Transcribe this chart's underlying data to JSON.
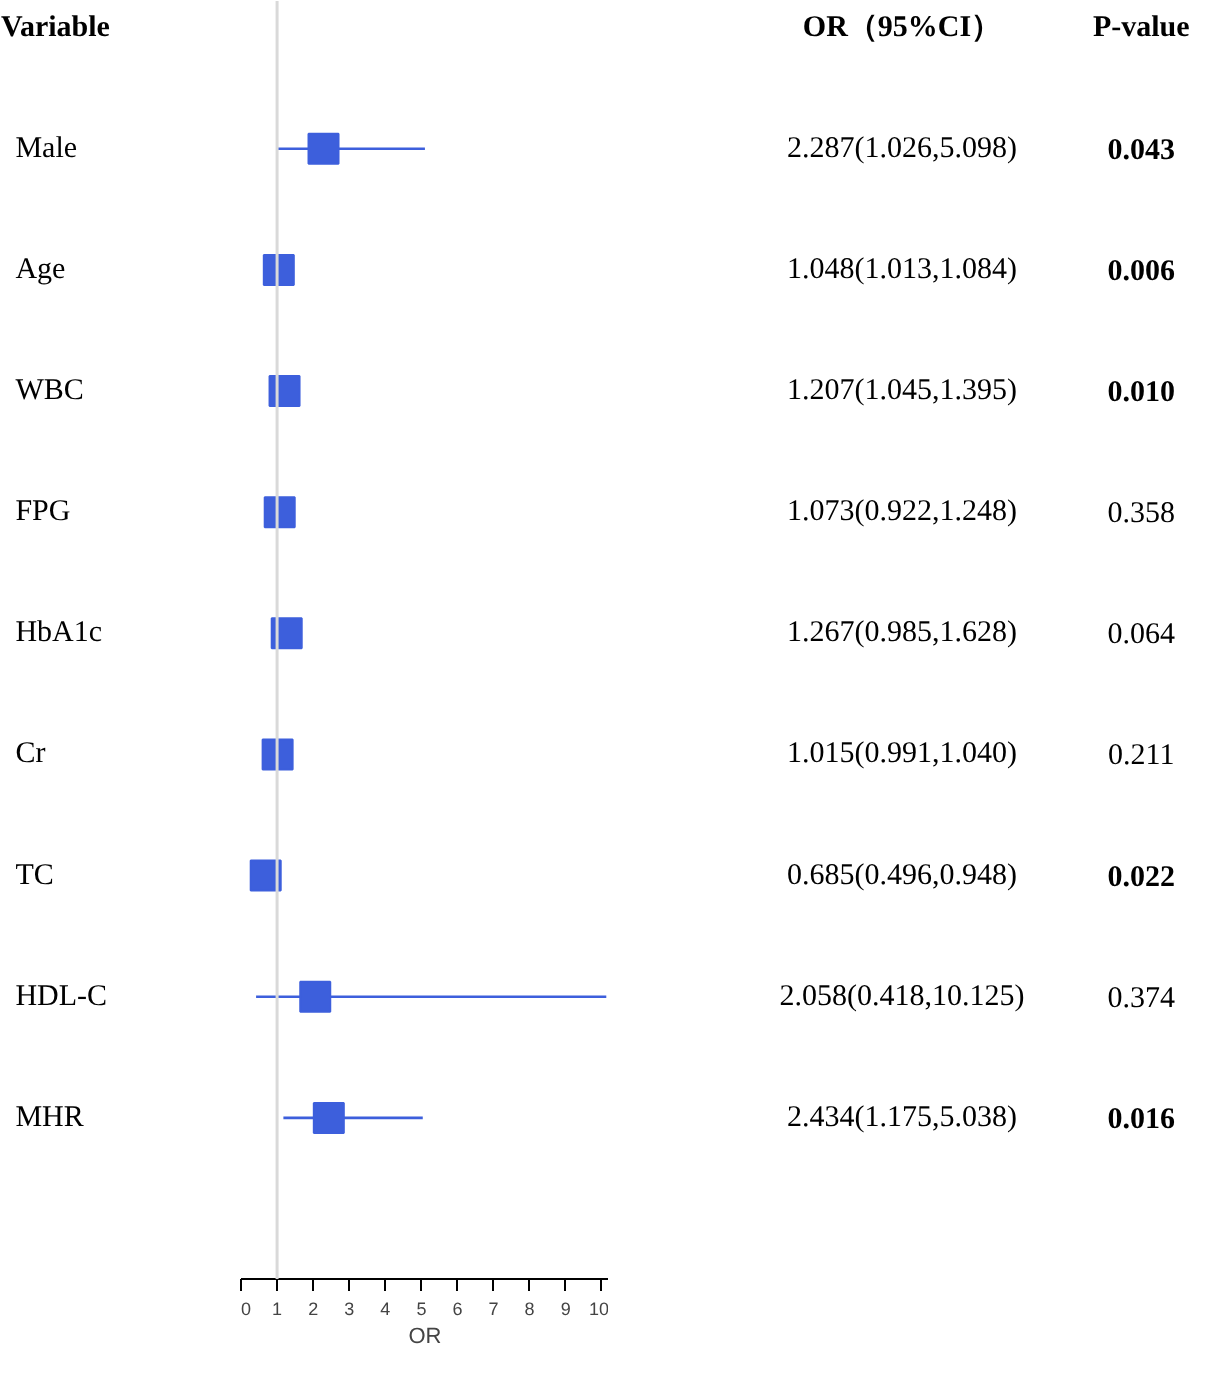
{
  "chart_data": {
    "type": "scatter",
    "orientation": "horizontal",
    "ylabel": "Variable",
    "xlabel": "OR",
    "categories": [
      "Male",
      "Age",
      "WBC",
      "FPG",
      "HbA1c",
      "Cr",
      "TC",
      "HDL-C",
      "MHR"
    ],
    "series": [
      {
        "color": "#3d5fdc",
        "values": [
          2.287,
          1.048,
          1.207,
          1.073,
          1.267,
          1.015,
          0.685,
          2.058,
          2.434
        ],
        "errors": [
          [
            1.026,
            5.098
          ],
          null,
          null,
          null,
          null,
          null,
          null,
          [
            0.418,
            10.125
          ],
          [
            1.175,
            5.038
          ]
        ],
        "value_labels": [
          "2.287(1.026,5.098)",
          "1.048(1.013,1.084)",
          "1.207(1.045,1.395)",
          "1.073(0.922,1.248)",
          "1.267(0.985,1.628)",
          "1.015(0.991,1.040)",
          "0.685(0.496,0.948)",
          "2.058(0.418,10.125)",
          "2.434(1.175,5.038)"
        ]
      }
    ],
    "annotations": [
      "OR（95%CI）",
      "P-value",
      "0.043",
      "0.006",
      "0.010",
      "0.358",
      "0.064",
      "0.211",
      "0.022",
      "0.374",
      "0.016"
    ],
    "xlim": [
      0,
      10.2
    ],
    "xticks": [
      0,
      1,
      2,
      3,
      4,
      5,
      6,
      7,
      8,
      9,
      10
    ],
    "ref_lines": [
      {
        "axis": "x",
        "value": 1,
        "color": "#d9d9d9"
      }
    ],
    "marker": "square",
    "grid": false
  }
}
